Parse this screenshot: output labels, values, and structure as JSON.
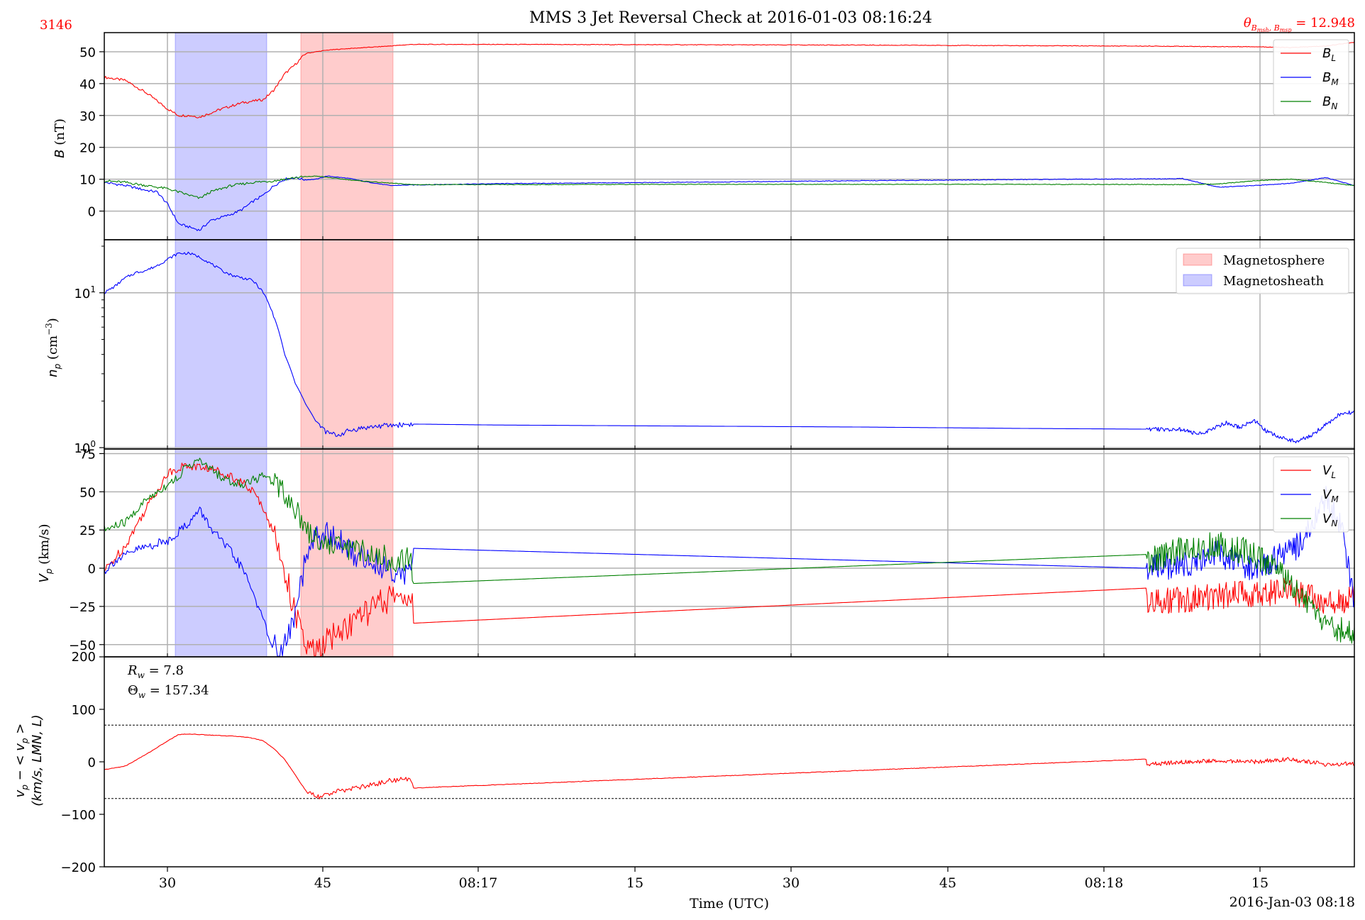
{
  "figure": {
    "title": "MMS 3 Jet Reversal Check at 2016-01-03 08:16:24",
    "event_id": "3146",
    "theta_label": "θB_msh,B_msp = 12.948",
    "theta_value": 12.948,
    "xlabel": "Time (UTC)",
    "date_label": "2016-Jan-03 08:18",
    "accent_red": "#ff0000",
    "accent_blue": "#0000ff",
    "accent_green": "#008000"
  },
  "chart_data": [
    {
      "type": "line",
      "panel": "magnetic_field",
      "ylabel": "B (nT)",
      "ylim": [
        -9,
        56
      ],
      "yticks": [
        0,
        10,
        20,
        30,
        40,
        50
      ],
      "xlim_s": [
        24,
        265
      ],
      "x_ticks": [
        {
          "t": 30,
          "label": "30"
        },
        {
          "t": 45,
          "label": "45"
        },
        {
          "t": 60,
          "label": "08:17"
        },
        {
          "t": 75,
          "label": "15"
        },
        {
          "t": 90,
          "label": "30"
        },
        {
          "t": 105,
          "label": "45"
        },
        {
          "t": 120,
          "label": "08:18"
        },
        {
          "t": 135,
          "label": "15"
        }
      ],
      "legend_position": "upper right",
      "shaded_regions": [
        {
          "name": "Magnetosheath",
          "t_start": 30.9,
          "t_end": 39.8,
          "color": "#0000ff"
        },
        {
          "name": "Magnetosphere",
          "t_start": 43.1,
          "t_end": 52.0,
          "color": "#ff0000"
        }
      ],
      "series": [
        {
          "name": "B_L",
          "color": "#ff0000",
          "x": [
            24,
            26,
            28,
            30,
            31,
            32,
            33,
            35,
            37,
            38,
            39,
            40,
            41,
            42,
            43,
            45,
            47,
            50,
            53,
            60,
            75,
            90,
            105,
            120,
            125,
            130,
            135,
            140,
            144
          ],
          "values": [
            42,
            41,
            37,
            32,
            30,
            30,
            29.5,
            32,
            34,
            34.5,
            35,
            38,
            43,
            46,
            49.5,
            50.5,
            51,
            51.6,
            52.3,
            52.3,
            52.2,
            52.1,
            51.9,
            51.7,
            51.6,
            51.6,
            51.3,
            51.8,
            53
          ]
        },
        {
          "name": "B_M",
          "color": "#0000ff",
          "x": [
            24,
            26,
            28,
            29,
            30,
            31,
            32,
            33,
            34,
            35,
            36,
            37,
            38,
            39,
            40,
            41,
            42,
            43,
            44,
            45,
            47,
            49,
            51,
            53,
            60,
            75,
            90,
            105,
            120,
            125,
            130,
            135,
            140,
            144
          ],
          "values": [
            9,
            8,
            6.5,
            6,
            2,
            -4,
            -5,
            -6,
            -3,
            -2,
            -1,
            0.5,
            3,
            5,
            8,
            10,
            10.5,
            9.8,
            10,
            11,
            10.3,
            9,
            8,
            8.2,
            8.6,
            9,
            9.5,
            9.9,
            10.2,
            7.5,
            8,
            8.7,
            10.5,
            8
          ]
        },
        {
          "name": "B_N",
          "color": "#008000",
          "x": [
            24,
            26,
            28,
            30,
            31,
            32,
            33,
            34,
            35,
            36,
            38,
            40,
            42,
            44,
            46,
            48,
            50,
            53,
            60,
            75,
            90,
            105,
            120,
            125,
            130,
            135,
            140,
            144
          ],
          "values": [
            9.5,
            9,
            8,
            7,
            6,
            5,
            4,
            6,
            7,
            8,
            9,
            9.5,
            10.5,
            11,
            10.2,
            9.5,
            9,
            8.3,
            8.3,
            8.4,
            8.4,
            8.4,
            8.3,
            8.5,
            9.5,
            10,
            9,
            8
          ]
        }
      ]
    },
    {
      "type": "line",
      "panel": "proton_density",
      "ylabel": "n_p (cm^-3)",
      "yscale": "log",
      "ylim": [
        0.98,
        22
      ],
      "yticks": [
        1,
        10
      ],
      "ytick_labels": [
        "10^0",
        "10^1"
      ],
      "xlim_s": [
        24,
        265
      ],
      "legend_position": "upper right",
      "legend": [
        {
          "label": "Magnetosphere",
          "color": "#ff0000"
        },
        {
          "label": "Magnetosheath",
          "color": "#0000ff"
        }
      ],
      "shaded_regions": [
        {
          "name": "Magnetosheath",
          "t_start": 30.9,
          "t_end": 39.8,
          "color": "#0000ff"
        },
        {
          "name": "Magnetosphere",
          "t_start": 43.1,
          "t_end": 52.0,
          "color": "#ff0000"
        }
      ],
      "series": [
        {
          "name": "n_p",
          "color": "#0000ff",
          "x": [
            24,
            25,
            26,
            27,
            28,
            29,
            30,
            31,
            32,
            33,
            34,
            35,
            36,
            37,
            38,
            39,
            40,
            41,
            42,
            43,
            44,
            45,
            46,
            47,
            48,
            50,
            53,
            60,
            75,
            90,
            105,
            120,
            122,
            124,
            126,
            128,
            130,
            132,
            134,
            136,
            138,
            140,
            142,
            144
          ],
          "values": [
            10,
            11,
            12.5,
            13.5,
            14,
            15,
            16.5,
            18,
            18,
            17,
            15.5,
            14,
            13,
            12.5,
            12,
            10,
            7,
            4,
            2.6,
            1.9,
            1.45,
            1.25,
            1.2,
            1.28,
            1.33,
            1.38,
            1.42,
            1.4,
            1.38,
            1.36,
            1.33,
            1.31,
            1.22,
            1.3,
            1.45,
            1.35,
            1.5,
            1.25,
            1.15,
            1.1,
            1.2,
            1.4,
            1.65,
            1.7
          ]
        }
      ]
    },
    {
      "type": "line",
      "panel": "proton_velocity",
      "ylabel": "V_p (km/s)",
      "ylim": [
        -58,
        78
      ],
      "yticks": [
        -50,
        -25,
        0,
        25,
        50,
        75
      ],
      "xlim_s": [
        24,
        265
      ],
      "legend_position": "upper right",
      "shaded_regions": [
        {
          "name": "Magnetosheath",
          "t_start": 30.9,
          "t_end": 39.8,
          "color": "#0000ff"
        },
        {
          "name": "Magnetosphere",
          "t_start": 43.1,
          "t_end": 52.0,
          "color": "#ff0000"
        }
      ],
      "series": [
        {
          "name": "V_L",
          "color": "#ff0000",
          "x": [
            24,
            26,
            28,
            30,
            31,
            32,
            33,
            34,
            35,
            36,
            37,
            38,
            39,
            40,
            41,
            42,
            43,
            44,
            45,
            46,
            47,
            48,
            49,
            50,
            51,
            52,
            53,
            53.1,
            115,
            115.1,
            120,
            125,
            130,
            135,
            140,
            144
          ],
          "values": [
            -2,
            15,
            40,
            62,
            66,
            67,
            66,
            65,
            63,
            60,
            56,
            50,
            40,
            22,
            0,
            -30,
            -52,
            -55,
            -48,
            -42,
            -38,
            -32,
            -28,
            -23,
            -20,
            -18,
            -17,
            -36,
            -13,
            -22,
            -20,
            -18,
            -17,
            -15,
            -22,
            -20
          ]
        },
        {
          "name": "V_M",
          "color": "#0000ff",
          "x": [
            24,
            25,
            26,
            27,
            28,
            29,
            30,
            31,
            32,
            33,
            34,
            35,
            36,
            37,
            38,
            39,
            40,
            40.5,
            41,
            42,
            43,
            44,
            45,
            46,
            47,
            48,
            50,
            52,
            53,
            53.1,
            115,
            120,
            125,
            130,
            135,
            138,
            140,
            142,
            144
          ],
          "values": [
            -2,
            5,
            8,
            12,
            14,
            16,
            18,
            24,
            30,
            38,
            27,
            18,
            10,
            0,
            -15,
            -35,
            -52,
            -55,
            -52,
            -30,
            5,
            20,
            22,
            18,
            12,
            8,
            2,
            -2,
            -3,
            13,
            0,
            2,
            10,
            0,
            10,
            25,
            45,
            30,
            -20
          ]
        },
        {
          "name": "V_N",
          "color": "#008000",
          "x": [
            24,
            26,
            28,
            30,
            31,
            32,
            33,
            34,
            35,
            36,
            37,
            38,
            39,
            40,
            41,
            42,
            43,
            44,
            45,
            46,
            47,
            48,
            49,
            50,
            51,
            52,
            53,
            53.1,
            115,
            115.1,
            120,
            125,
            130,
            135,
            140,
            144
          ],
          "values": [
            25,
            30,
            45,
            55,
            60,
            68,
            70,
            65,
            60,
            56,
            55,
            58,
            60,
            57,
            50,
            40,
            27,
            20,
            16,
            15,
            14,
            12,
            10,
            8,
            6,
            5,
            5,
            -10,
            9,
            5,
            12,
            15,
            10,
            -10,
            -40,
            -42
          ]
        }
      ]
    },
    {
      "type": "line",
      "panel": "velocity_deviation",
      "ylabel": "v_p − <v_p>",
      "ylabel2": "(km/s, LMN, L)",
      "ylim": [
        -200,
        200
      ],
      "yticks": [
        -200,
        -100,
        0,
        100,
        200
      ],
      "xlim_s": [
        24,
        265
      ],
      "threshold_lines": [
        70,
        -70
      ],
      "annotations": [
        "R_w = 7.80",
        "Θ_w = 157.34"
      ],
      "R_w": 7.8,
      "Theta_w": 157.34,
      "series": [
        {
          "name": "V_L deviation",
          "color": "#ff0000",
          "x": [
            24,
            26,
            28,
            30,
            31,
            32,
            33,
            35,
            37,
            38,
            39,
            40,
            41,
            42,
            43,
            44,
            45,
            47,
            49,
            51,
            53,
            53.1,
            115,
            115.1,
            120,
            125,
            130,
            135,
            140,
            144
          ],
          "values": [
            -15,
            -8,
            15,
            40,
            52,
            53,
            52,
            50,
            48,
            45,
            40,
            25,
            5,
            -25,
            -55,
            -68,
            -62,
            -52,
            -45,
            -35,
            -33,
            -50,
            5,
            -5,
            0,
            2,
            0,
            5,
            -5,
            -3
          ]
        }
      ]
    }
  ]
}
